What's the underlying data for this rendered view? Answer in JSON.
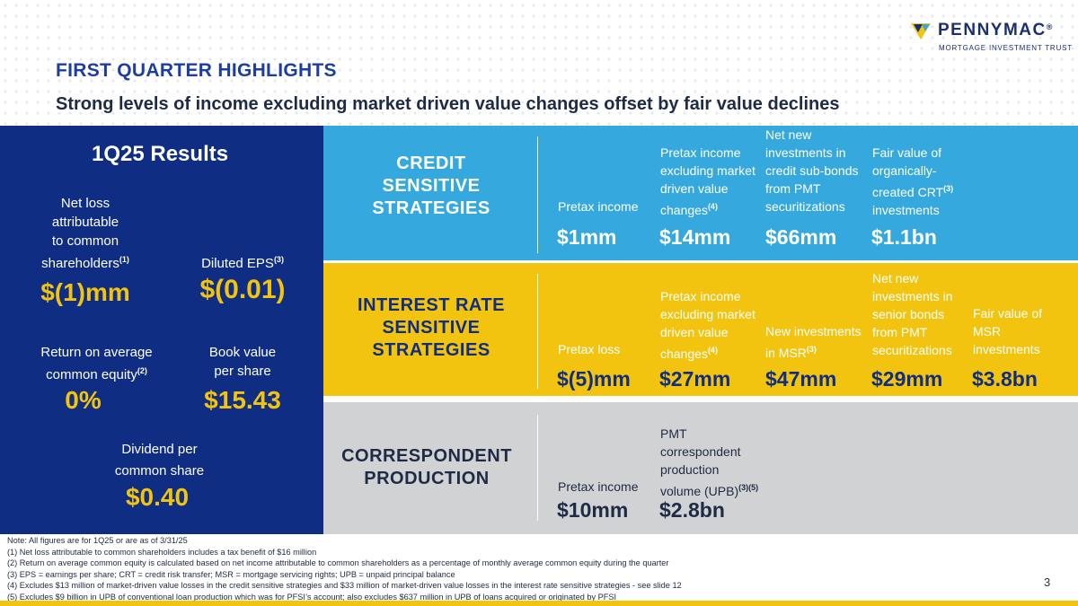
{
  "brand": {
    "name": "PENNYMAC",
    "registered": "®",
    "subtitle": "MORTGAGE INVESTMENT TRUST",
    "colors": {
      "navy": "#0f2d83",
      "sky": "#35a9dd",
      "gold": "#f2c40f",
      "gray": "#d1d2d3"
    }
  },
  "header": {
    "title": "FIRST QUARTER HIGHLIGHTS",
    "subtitle": "Strong levels of income excluding market driven value changes offset by fair value declines"
  },
  "results": {
    "title": "1Q25 Results",
    "net_loss": {
      "label_lines": [
        "Net loss",
        "attributable",
        "to common",
        "shareholders"
      ],
      "note": "(1)",
      "value": "$(1)mm"
    },
    "diluted_eps": {
      "label": "Diluted EPS",
      "note": "(3)",
      "value": "$(0.01)"
    },
    "roe": {
      "label_lines": [
        "Return on average",
        "common equity"
      ],
      "note": "(2)",
      "value": "0%"
    },
    "book_value": {
      "label_lines": [
        "Book value",
        "per share"
      ],
      "value": "$15.43"
    },
    "dividend": {
      "label_lines": [
        "Dividend per",
        "common share"
      ],
      "value": "$0.40"
    }
  },
  "strategies": {
    "credit": {
      "name_lines": [
        "CREDIT",
        "SENSITIVE",
        "STRATEGIES"
      ],
      "columns": [
        {
          "label_lines": [
            "Pretax income"
          ],
          "value": "$1mm"
        },
        {
          "label_lines": [
            "Pretax income",
            "excluding market",
            "driven value",
            "changes"
          ],
          "note": "(4)",
          "value": "$14mm"
        },
        {
          "label_lines": [
            "Net new",
            "investments in",
            "credit sub-bonds",
            "from PMT",
            "securitizations"
          ],
          "value": "$66mm"
        },
        {
          "label_lines": [
            "Fair value of",
            "organically-",
            "created CRT",
            "investments"
          ],
          "note": "(3)",
          "value": "$1.1bn"
        }
      ]
    },
    "interest": {
      "name_lines": [
        "INTEREST RATE",
        "SENSITIVE",
        "STRATEGIES"
      ],
      "columns": [
        {
          "label_lines": [
            "Pretax loss"
          ],
          "value": "$(5)mm"
        },
        {
          "label_lines": [
            "Pretax income",
            "excluding market",
            "driven value",
            "changes"
          ],
          "note": "(4)",
          "value": "$27mm"
        },
        {
          "label_lines": [
            "New investments",
            "in MSR"
          ],
          "note": "(3)",
          "value": "$47mm"
        },
        {
          "label_lines": [
            "Net new",
            "investments in",
            "senior bonds",
            "from PMT",
            "securitizations"
          ],
          "value": "$29mm"
        },
        {
          "label_lines": [
            "Fair value of",
            "MSR",
            "investments"
          ],
          "value": "$3.8bn"
        }
      ]
    },
    "correspondent": {
      "name_lines": [
        "CORRESPONDENT",
        "PRODUCTION"
      ],
      "columns": [
        {
          "label_lines": [
            "Pretax income"
          ],
          "value": "$10mm"
        },
        {
          "label_lines": [
            "PMT",
            "correspondent",
            "production",
            "volume (UPB)"
          ],
          "note": "(3)(5)",
          "value": "$2.8bn"
        }
      ]
    }
  },
  "notes": [
    "Note: All figures are for 1Q25 or are as of 3/31/25",
    "(1) Net loss attributable to common shareholders includes a tax benefit of $16 million",
    "(2) Return on average common equity is calculated based on net income attributable to common shareholders as a percentage of monthly average common equity during the quarter",
    "(3) EPS = earnings per share; CRT = credit risk transfer; MSR = mortgage servicing rights; UPB = unpaid principal balance",
    "(4) Excludes $13 million of market-driven value losses in the credit sensitive strategies and $33 million of market-driven value losses in the interest rate sensitive strategies - see slide 12",
    "(5) Excludes $9 billion in UPB of conventional loan production which was for PFSI’s account; also excludes $637 million in UPB of loans acquired or originated by PFSI"
  ],
  "page_number": "3"
}
